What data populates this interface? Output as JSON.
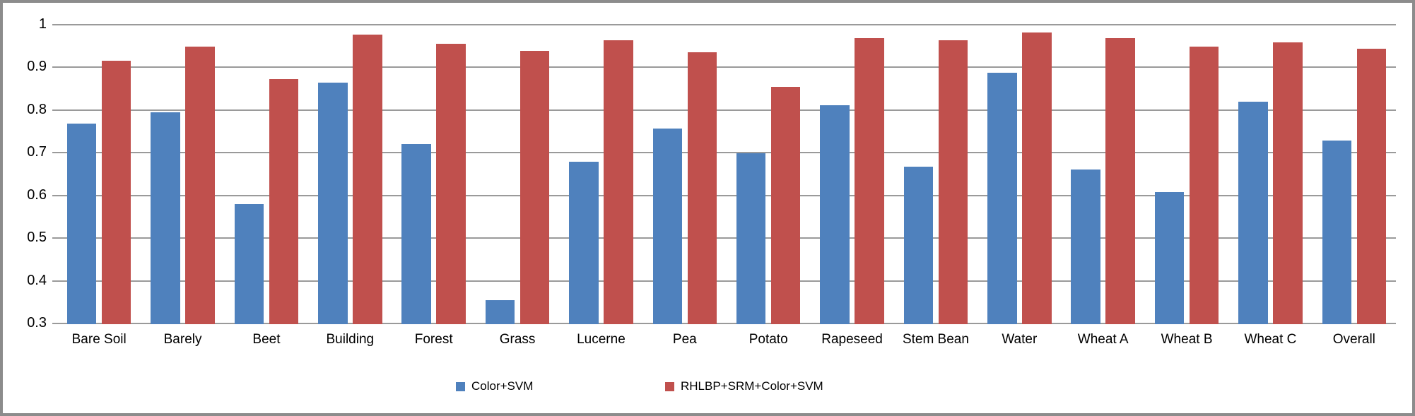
{
  "chart_data": {
    "type": "bar",
    "title": "",
    "xlabel": "",
    "ylabel": "",
    "categories": [
      "Bare Soil",
      "Barely",
      "Beet",
      "Building",
      "Forest",
      "Grass",
      "Lucerne",
      "Pea",
      "Potato",
      "Rapeseed",
      "Stem Bean",
      "Water",
      "Wheat A",
      "Wheat B",
      "Wheat C",
      "Overall"
    ],
    "series": [
      {
        "name": "Color+SVM",
        "color": "#4F81BD",
        "values": [
          0.768,
          0.795,
          0.58,
          0.864,
          0.721,
          0.354,
          0.679,
          0.756,
          0.698,
          0.812,
          0.667,
          0.887,
          0.661,
          0.608,
          0.819,
          0.728
        ]
      },
      {
        "name": "RHLBP+SRM+Color+SVM",
        "color": "#C0504D",
        "values": [
          0.916,
          0.949,
          0.873,
          0.977,
          0.955,
          0.938,
          0.963,
          0.935,
          0.855,
          0.969,
          0.964,
          0.981,
          0.968,
          0.948,
          0.958,
          0.944
        ]
      }
    ],
    "ylim": [
      0.3,
      1.0
    ],
    "yticks": [
      1,
      0.9,
      0.8,
      0.7,
      0.6,
      0.5,
      0.4,
      0.3
    ],
    "ytick_labels": [
      "1",
      "0.9",
      "0.8",
      "0.7",
      "0.6",
      "0.5",
      "0.4",
      "0.3"
    ],
    "grid": "horizontal-on",
    "gridline_color": "#9a9a9a",
    "frame_color": "#8c8c8c",
    "background_color": "#ffffff",
    "legend_position": "bottom"
  }
}
